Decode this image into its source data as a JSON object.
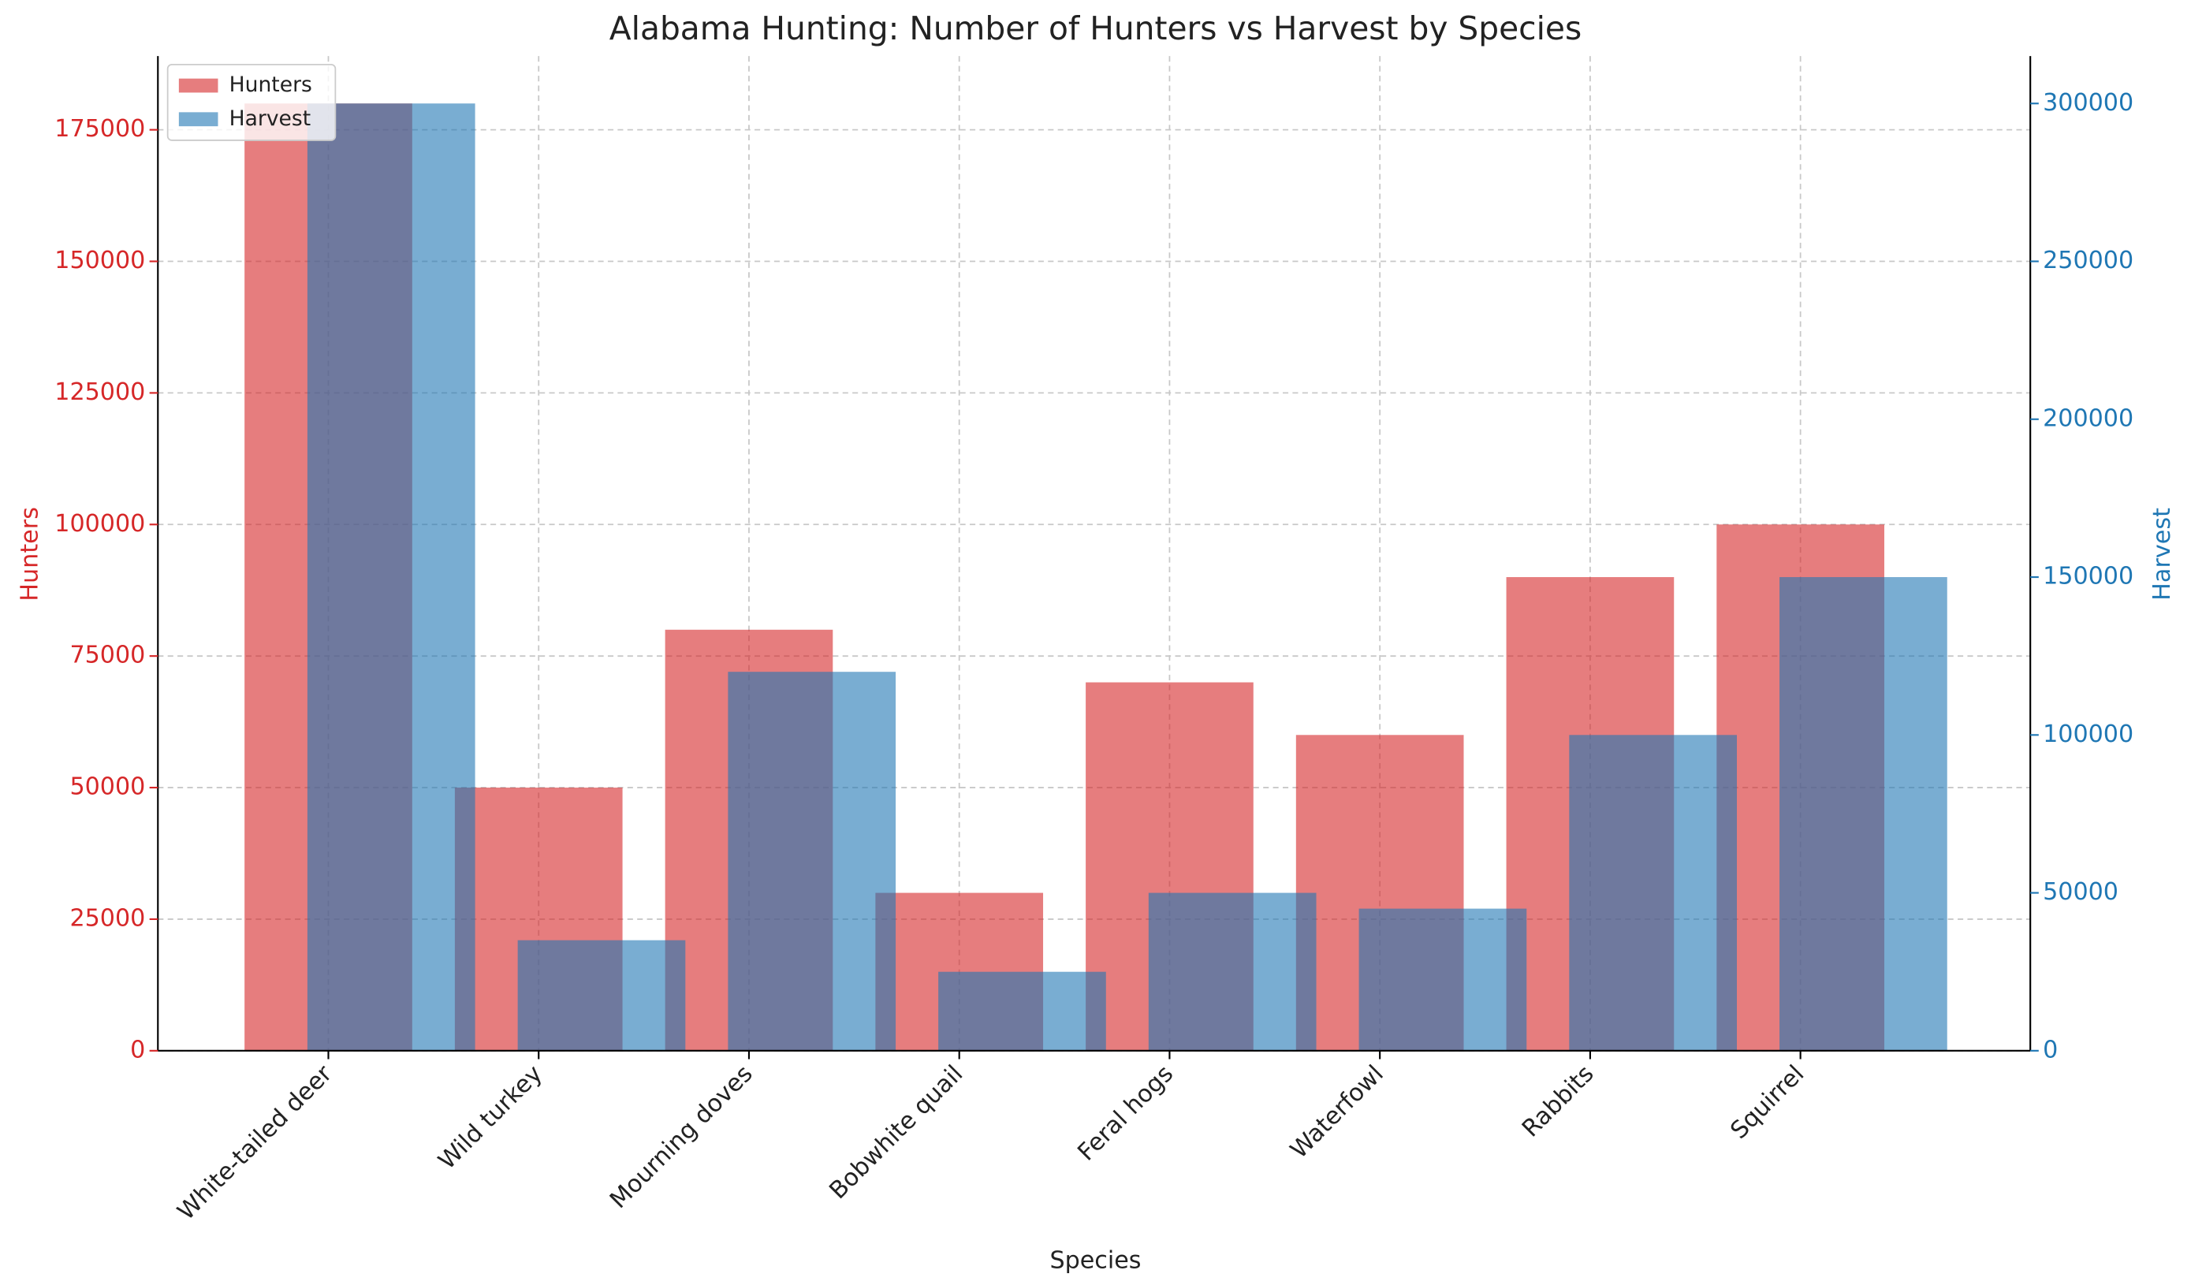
{
  "chart_data": {
    "type": "bar",
    "title": "Alabama Hunting: Number of Hunters vs Harvest by Species",
    "xlabel": "Species",
    "ylabel": "Hunters",
    "y2label": "Harvest",
    "categories": [
      "White-tailed deer",
      "Wild turkey",
      "Mourning doves",
      "Bobwhite quail",
      "Feral hogs",
      "Waterfowl",
      "Rabbits",
      "Squirrel"
    ],
    "series": [
      {
        "name": "Hunters",
        "color": "#d62728",
        "axis": "y",
        "values": [
          180000,
          50000,
          80000,
          30000,
          70000,
          60000,
          90000,
          100000
        ]
      },
      {
        "name": "Harvest",
        "color": "#1f77b4",
        "axis": "y2",
        "values": [
          300000,
          35000,
          120000,
          25000,
          50000,
          45000,
          100000,
          150000
        ]
      }
    ],
    "ylim": [
      0,
      189000
    ],
    "yticks": [
      0,
      25000,
      50000,
      75000,
      100000,
      125000,
      150000,
      175000
    ],
    "y2lim": [
      0,
      315000
    ],
    "y2ticks": [
      0,
      50000,
      100000,
      150000,
      200000,
      250000,
      300000
    ],
    "grid": true,
    "legend": "upper left"
  }
}
